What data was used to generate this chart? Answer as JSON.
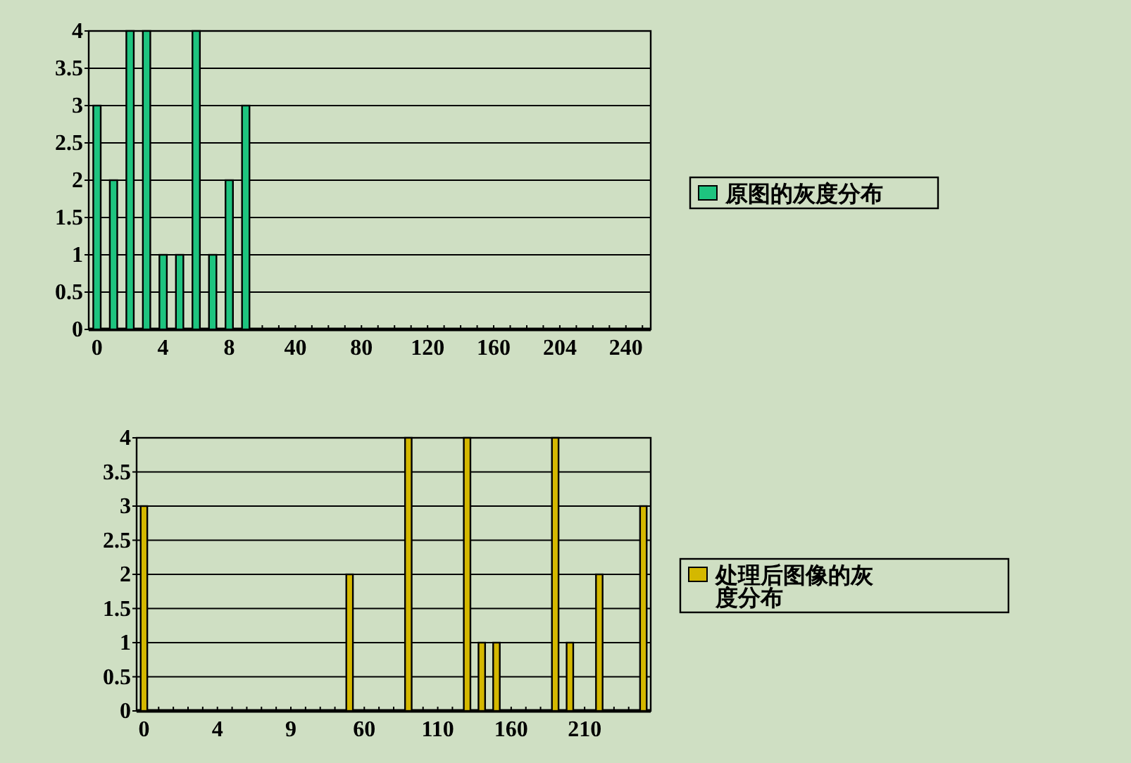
{
  "chart_data": [
    {
      "type": "bar",
      "categories": [
        "0",
        null,
        null,
        null,
        "4",
        null,
        null,
        null,
        "8",
        null,
        null,
        null,
        "40",
        null,
        null,
        null,
        "80",
        null,
        null,
        null,
        "120",
        null,
        null,
        null,
        "160",
        null,
        null,
        null,
        "204",
        null,
        null,
        null,
        "240",
        null
      ],
      "series": [
        {
          "name": "原图的灰度分布",
          "color": "#1ec47f",
          "values": [
            3,
            2,
            4,
            4,
            1,
            1,
            4,
            1,
            2,
            3,
            0,
            0,
            0,
            0,
            0,
            0,
            0,
            0,
            0,
            0,
            0,
            0,
            0,
            0,
            0,
            0,
            0,
            0,
            0,
            0,
            0,
            0,
            0,
            0
          ]
        }
      ],
      "ylim": [
        0,
        4
      ],
      "yticks": [
        0,
        0.5,
        1,
        1.5,
        2,
        2.5,
        3,
        3.5,
        4
      ],
      "grid": "y",
      "legend": "right"
    },
    {
      "type": "bar",
      "categories": [
        "0",
        null,
        null,
        null,
        null,
        "4",
        null,
        null,
        null,
        null,
        "9",
        null,
        null,
        null,
        null,
        "60",
        null,
        null,
        null,
        null,
        "110",
        null,
        null,
        null,
        null,
        "160",
        null,
        null,
        null,
        null,
        "210",
        null,
        null,
        null,
        null
      ],
      "series": [
        {
          "name": "处理后图像的灰度分布",
          "color": "#d4b800",
          "values": [
            3,
            0,
            0,
            0,
            0,
            0,
            0,
            0,
            0,
            0,
            0,
            0,
            0,
            0,
            2,
            0,
            0,
            0,
            4,
            0,
            0,
            0,
            4,
            1,
            1,
            0,
            0,
            0,
            4,
            1,
            0,
            2,
            0,
            0,
            3
          ]
        }
      ],
      "ylim": [
        0,
        4
      ],
      "yticks": [
        0,
        0.5,
        1,
        1.5,
        2,
        2.5,
        3,
        3.5,
        4
      ],
      "grid": "y",
      "legend": "right"
    }
  ]
}
